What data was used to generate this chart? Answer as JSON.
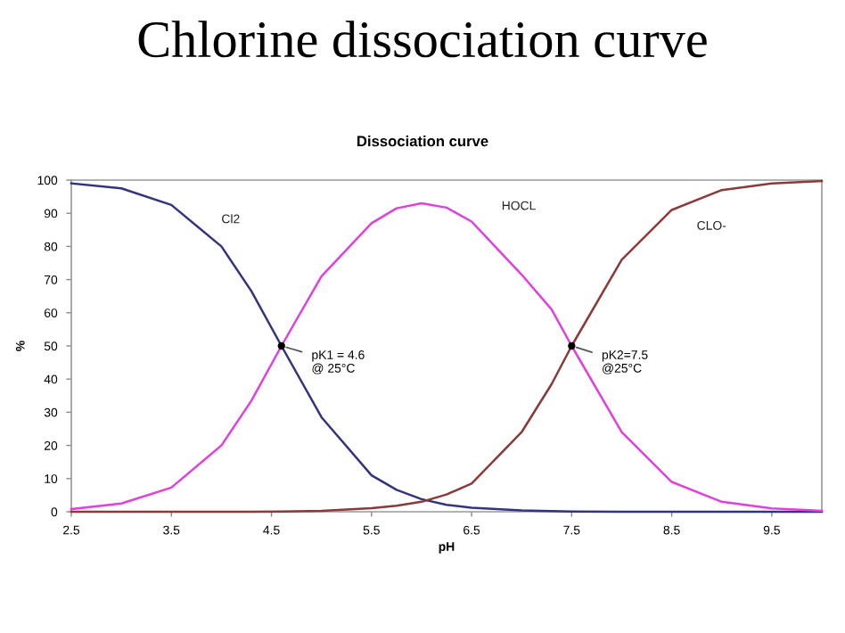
{
  "chart_data": {
    "type": "line",
    "title": "Chlorine dissociation curve",
    "subtitle": "Dissociation curve",
    "xlabel": "pH",
    "ylabel": "%",
    "x": [
      2.5,
      3.0,
      3.5,
      4.0,
      4.3,
      4.6,
      5.0,
      5.5,
      5.75,
      6.0,
      6.25,
      6.5,
      7.0,
      7.3,
      7.5,
      8.0,
      8.5,
      9.0,
      9.5,
      10.0
    ],
    "series": [
      {
        "name": "Cl2",
        "color": "#333380",
        "values": [
          99,
          97.5,
          92.5,
          80,
          66.5,
          50,
          28.5,
          11,
          6.6,
          3.8,
          2.1,
          1.2,
          0.4,
          0.2,
          0.1,
          0,
          0,
          0,
          0,
          0
        ]
      },
      {
        "name": "HOCL",
        "color": "#e040e0",
        "values": [
          0.8,
          2.5,
          7.3,
          20,
          33.5,
          50,
          71,
          87,
          91.5,
          93,
          91.7,
          87.5,
          71.5,
          61,
          50,
          24,
          9,
          3,
          1,
          0.3
        ]
      },
      {
        "name": "CLO-",
        "color": "#8b3a3a",
        "values": [
          0,
          0,
          0,
          0,
          0,
          0.1,
          0.3,
          1.1,
          1.8,
          3,
          5.2,
          8.5,
          24,
          38.5,
          50,
          76,
          91,
          97,
          99,
          99.7
        ]
      }
    ],
    "annotations": [
      {
        "text": "pK1 = 4.6\n@ 25°C",
        "x": 4.6,
        "y": 50
      },
      {
        "text": "pK2=7.5\n@25°C",
        "x": 7.5,
        "y": 50
      }
    ],
    "xlim": [
      2.5,
      10.0
    ],
    "xticks": [
      2.5,
      3.5,
      4.5,
      5.5,
      6.5,
      7.5,
      8.5,
      9.5
    ],
    "ylim": [
      0,
      100
    ],
    "yticks": [
      0,
      10,
      20,
      30,
      40,
      50,
      60,
      70,
      80,
      90,
      100
    ],
    "grid": false,
    "legend": false,
    "marker": "none",
    "line_style": "solid"
  }
}
